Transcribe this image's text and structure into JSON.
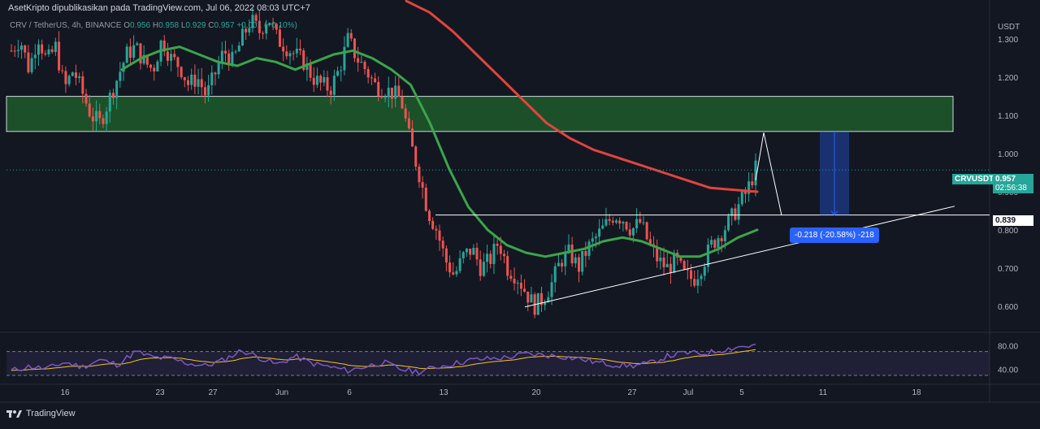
{
  "header": {
    "publisher_text": "AsetKripto dipublikasikan pada TradingView.com, Jul 06, 2022 08:03 UTC+7",
    "symbol_line": "CRV / TetherUS, 4h, BINANCE",
    "o_label": "O",
    "o_value": "0.956",
    "h_label": "H",
    "h_value": "0.958",
    "l_label": "L",
    "l_value": "0.929",
    "c_label": "C",
    "c_value": "0.957",
    "change_value": "+0.001 (+0.10%)"
  },
  "price_axis": {
    "unit_label": "USDT",
    "ticks": [
      "1.300",
      "1.200",
      "1.100",
      "1.000",
      "0.900",
      "0.800",
      "0.700",
      "0.600"
    ],
    "current_symbol": "CRVUSDT",
    "current_price": "0.957",
    "countdown": "02:56:38",
    "level_label": "0.839"
  },
  "rsi_axis": {
    "ticks": [
      "80.00",
      "40.00"
    ]
  },
  "time_axis": {
    "ticks": [
      "16",
      "23",
      "27",
      "Jun",
      "6",
      "13",
      "20",
      "27",
      "Jul",
      "5",
      "11",
      "18"
    ]
  },
  "measure": {
    "label": "-0.218 (-20.58%) -218"
  },
  "footer": {
    "brand": "TradingView"
  },
  "colors": {
    "background": "#131722",
    "up": "#26a69a",
    "down": "#ef5350",
    "ema_slow": "#e0453d",
    "ema_fast": "#3aa54a",
    "zone_fill": "#1e5a2a",
    "rsi_line": "#7e57c2",
    "rsi_ma": "#f5c518",
    "measure": "#2962ff"
  },
  "chart_data": {
    "type": "candlestick",
    "symbol": "CRV / TetherUS",
    "timeframe": "4h",
    "exchange": "BINANCE",
    "ylim": [
      0.54,
      1.36
    ],
    "last_price": 0.957,
    "resistance_zone": [
      1.058,
      1.15
    ],
    "horizontal_level": 0.839,
    "measured_move_change": -0.218,
    "measured_move_percent": -20.58,
    "rising_trendline": [
      [
        0.598,
        0.598
      ],
      [
        0.862,
        0.862
      ]
    ],
    "close_path": [
      1.27,
      1.3,
      1.22,
      1.31,
      1.24,
      1.28,
      1.17,
      1.22,
      1.16,
      1.1,
      1.08,
      1.14,
      1.2,
      1.26,
      1.28,
      1.24,
      1.22,
      1.3,
      1.25,
      1.23,
      1.18,
      1.2,
      1.15,
      1.21,
      1.27,
      1.24,
      1.3,
      1.35,
      1.32,
      1.36,
      1.3,
      1.28,
      1.26,
      1.24,
      1.2,
      1.18,
      1.17,
      1.22,
      1.3,
      1.25,
      1.22,
      1.18,
      1.17,
      1.16,
      1.14,
      1.03,
      0.95,
      0.85,
      0.8,
      0.72,
      0.68,
      0.73,
      0.75,
      0.7,
      0.72,
      0.77,
      0.7,
      0.68,
      0.64,
      0.6,
      0.62,
      0.66,
      0.72,
      0.74,
      0.7,
      0.75,
      0.78,
      0.81,
      0.84,
      0.83,
      0.8,
      0.82,
      0.76,
      0.72,
      0.7,
      0.72,
      0.68,
      0.67,
      0.71,
      0.76,
      0.79,
      0.82,
      0.86,
      0.9,
      0.96
    ],
    "ema_fast_path": [
      1.22,
      1.25,
      1.27,
      1.28,
      1.26,
      1.24,
      1.23,
      1.25,
      1.24,
      1.22,
      1.24,
      1.26,
      1.27,
      1.25,
      1.22,
      1.18,
      1.08,
      0.96,
      0.86,
      0.8,
      0.76,
      0.74,
      0.73,
      0.74,
      0.75,
      0.77,
      0.78,
      0.77,
      0.75,
      0.73,
      0.73,
      0.75,
      0.78,
      0.8
    ],
    "ema_slow_path": [
      1.4,
      1.37,
      1.32,
      1.26,
      1.2,
      1.14,
      1.08,
      1.04,
      1.01,
      0.99,
      0.97,
      0.95,
      0.93,
      0.91,
      0.905,
      0.9
    ],
    "rsi_ylim": [
      30,
      90
    ],
    "rsi_guides": [
      70,
      30
    ],
    "rsi_path": [
      38,
      45,
      41,
      52,
      44,
      56,
      48,
      70,
      60,
      58,
      50,
      46,
      56,
      72,
      60,
      48,
      62,
      50,
      44,
      38,
      45,
      52,
      40,
      36,
      44,
      50,
      56,
      58,
      60,
      66,
      64,
      62,
      58,
      52,
      48,
      46,
      50,
      62,
      68,
      66,
      72,
      78,
      80
    ]
  }
}
